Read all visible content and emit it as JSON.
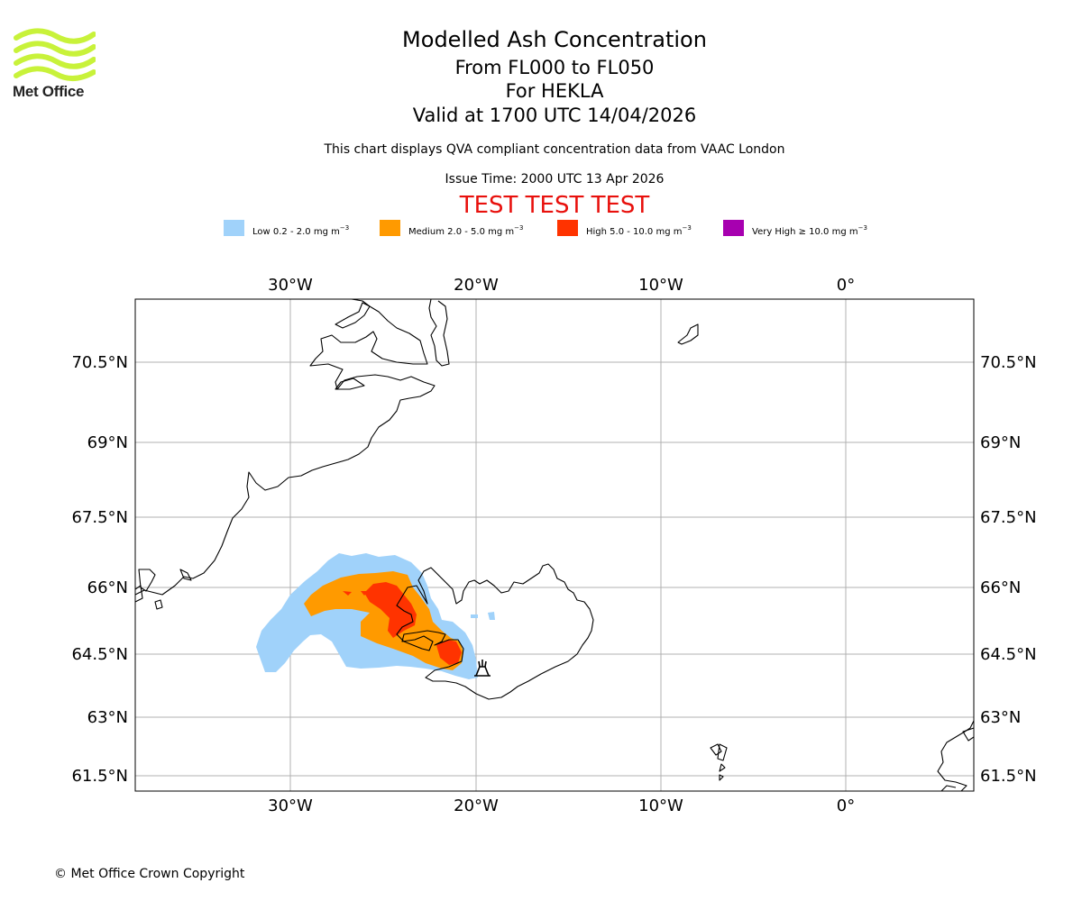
{
  "logo": {
    "text": "Met Office",
    "icon": "met-office-wave-logo-icon",
    "color": "#c8f23a"
  },
  "header": {
    "title": "Modelled Ash Concentration",
    "flight_levels": "From FL000 to FL050",
    "volcano": "For HEKLA",
    "valid_time": "Valid at 1700 UTC 14/04/2026",
    "description": "This chart displays QVA compliant concentration data from VAAC London",
    "issue_time": "Issue Time: 2000 UTC 13 Apr 2026",
    "test_banner": "TEST TEST TEST"
  },
  "legend": {
    "unit": "mg m",
    "unit_exponent": "−3",
    "items": [
      {
        "label": "Low 0.2 - 2.0",
        "color": "#a0d2fa"
      },
      {
        "label": "Medium 2.0 - 5.0",
        "color": "#ff9a00"
      },
      {
        "label": "High 5.0 - 10.0",
        "color": "#ff3300"
      },
      {
        "label": "Very High  ≥  10.0",
        "color": "#a700b0"
      }
    ]
  },
  "map": {
    "longitude_labels": [
      "30°W",
      "20°W",
      "10°W",
      "0°"
    ],
    "latitude_labels": [
      "70.5°N",
      "69°N",
      "67.5°N",
      "66°N",
      "64.5°N",
      "63°N",
      "61.5°N"
    ],
    "volcano_marker_icon": "volcano-icon",
    "gridline_color": "#b0b0b0"
  },
  "footer": {
    "copyright": "© Met Office Crown Copyright"
  }
}
